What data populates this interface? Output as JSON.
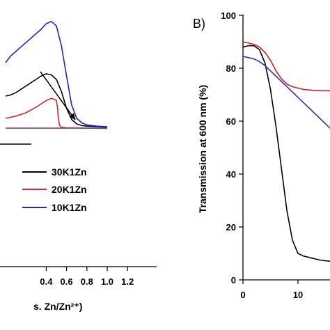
{
  "chart_data": [
    {
      "type": "line",
      "panel": "A",
      "xlabel_visible": "s. Zn/Zn²⁺)",
      "ylabel": "",
      "xlim": [
        0,
        1.25
      ],
      "x_ticks": [
        0.4,
        0.6,
        0.8,
        1.0,
        1.2
      ],
      "x_tick_labels": [
        "0.4",
        "0.6",
        "0.8",
        "1.0",
        "1.2"
      ],
      "legend_placement": "bottom-left",
      "series": [
        {
          "name": "30K1Zn",
          "color": "#000000",
          "x": [
            0.0,
            0.05,
            0.1,
            0.15,
            0.2,
            0.25,
            0.3,
            0.35,
            0.4,
            0.45,
            0.5,
            0.55,
            0.6,
            0.65,
            0.7,
            0.75,
            0.8,
            0.9,
            1.0
          ],
          "y": [
            0.3,
            0.31,
            0.33,
            0.36,
            0.39,
            0.42,
            0.45,
            0.48,
            0.5,
            0.49,
            0.45,
            0.34,
            0.19,
            0.09,
            0.05,
            0.035,
            0.03,
            0.025,
            0.02
          ]
        },
        {
          "name": "20K1Zn",
          "color": "#d62728",
          "x": [
            0.0,
            0.1,
            0.2,
            0.3,
            0.4,
            0.45,
            0.48,
            0.5,
            0.51,
            0.52,
            0.53,
            0.55,
            0.6,
            0.8,
            1.0
          ],
          "y": [
            0.1,
            0.12,
            0.15,
            0.2,
            0.26,
            0.28,
            0.27,
            0.26,
            0.2,
            0.1,
            0.04,
            0.02,
            0.015,
            0.012,
            0.01
          ]
        },
        {
          "name": "10K1Zn",
          "color": "#2222cc",
          "x": [
            0.0,
            0.05,
            0.1,
            0.2,
            0.25,
            0.3,
            0.35,
            0.4,
            0.45,
            0.5,
            0.55,
            0.6,
            0.65,
            0.7,
            0.75,
            0.8,
            0.9,
            1.0
          ],
          "y": [
            0.6,
            0.66,
            0.7,
            0.78,
            0.82,
            0.86,
            0.9,
            0.95,
            0.97,
            0.93,
            0.75,
            0.48,
            0.22,
            0.1,
            0.06,
            0.04,
            0.03,
            0.025
          ]
        },
        {
          "name": "",
          "color": "#7b3fa0",
          "x": [
            0.0,
            1.0
          ],
          "y": [
            0.012,
            0.012
          ]
        }
      ]
    },
    {
      "type": "line",
      "panel": "B",
      "title": "B)",
      "xlabel": "",
      "ylabel": "Transmission at 600 nm (%)",
      "xlim": [
        0,
        19
      ],
      "ylim": [
        0,
        100
      ],
      "x_ticks": [
        0,
        10
      ],
      "x_tick_labels": [
        "0",
        "10"
      ],
      "y_ticks": [
        0,
        20,
        40,
        60,
        80,
        100
      ],
      "y_tick_labels": [
        "0",
        "20",
        "40",
        "60",
        "80",
        "100"
      ],
      "series": [
        {
          "name": "30K1Zn",
          "color": "#000000",
          "x": [
            0,
            1,
            2,
            3,
            4,
            5,
            6,
            7,
            8,
            9,
            10,
            11,
            12,
            13,
            14,
            15,
            16,
            17,
            18,
            19
          ],
          "y": [
            88,
            88.5,
            88.5,
            87,
            82,
            72,
            58,
            42,
            26,
            15,
            10,
            9,
            8.5,
            8,
            7.5,
            7.2,
            7,
            6.8,
            6.6,
            6.5
          ]
        },
        {
          "name": "20K1Zn",
          "color": "#cc2222",
          "x": [
            0,
            1,
            2,
            3,
            4,
            5,
            6,
            7,
            8,
            9,
            10,
            11,
            12,
            13,
            14,
            15,
            16,
            17,
            18,
            19
          ],
          "y": [
            90,
            89.5,
            89,
            88,
            86,
            83,
            79,
            76,
            74,
            73,
            72.5,
            72,
            71.8,
            71.6,
            71.5,
            71.5,
            71.5,
            71.5,
            71.5,
            71.5
          ]
        },
        {
          "name": "10K1Zn",
          "color": "#2233bb",
          "x": [
            0,
            1,
            2,
            3,
            4,
            5,
            6,
            7,
            8,
            9,
            10,
            11,
            12,
            13,
            14,
            15,
            16,
            17,
            18,
            19
          ],
          "y": [
            84.5,
            84,
            83.5,
            82.5,
            81,
            79,
            77,
            75,
            73,
            71,
            69,
            67,
            65,
            63,
            61,
            59,
            57,
            55.5,
            55,
            55
          ]
        }
      ]
    }
  ]
}
